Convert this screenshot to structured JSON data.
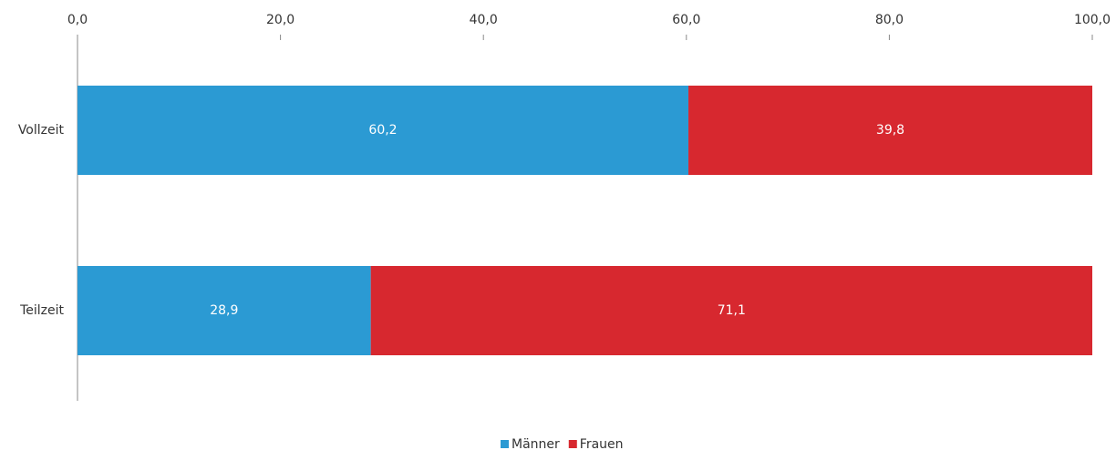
{
  "chart_data": {
    "type": "bar",
    "orientation": "horizontal",
    "stacked": true,
    "categories": [
      "Vollzeit",
      "Teilzeit"
    ],
    "series": [
      {
        "name": "Männer",
        "color": "#2b9ad3",
        "values": [
          60.2,
          28.9
        ],
        "value_labels": [
          "60,2",
          "28,9"
        ]
      },
      {
        "name": "Frauen",
        "color": "#d7282f",
        "values": [
          39.8,
          71.1
        ],
        "value_labels": [
          "39,8",
          "71,1"
        ]
      }
    ],
    "xlim": [
      0,
      100
    ],
    "xticks": [
      {
        "value": 0,
        "label": "0,0"
      },
      {
        "value": 20,
        "label": "20,0"
      },
      {
        "value": 40,
        "label": "40,0"
      },
      {
        "value": 60,
        "label": "60,0"
      },
      {
        "value": 80,
        "label": "80,0"
      },
      {
        "value": 100,
        "label": "100,0"
      }
    ],
    "legend": "bottom"
  }
}
